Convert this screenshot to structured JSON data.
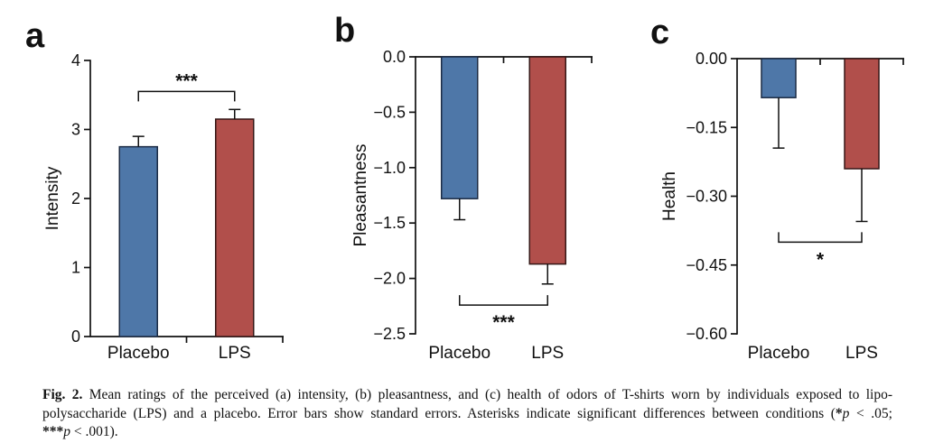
{
  "colors": {
    "axis": "#111111",
    "placebo_fill": "#4e77a8",
    "placebo_stroke": "#1c2b44",
    "lps_fill": "#b14f4b",
    "lps_stroke": "#351716"
  },
  "chart_data": [
    {
      "type": "bar",
      "panel_label": "a",
      "ylabel": "Intensity",
      "xlabel": "",
      "ylim": [
        0,
        4
      ],
      "yticks": [
        4,
        3,
        2,
        1,
        0
      ],
      "ytick_labels": [
        "4",
        "3",
        "2",
        "1",
        "0"
      ],
      "categories": [
        "Placebo",
        "LPS"
      ],
      "values": [
        2.75,
        3.15
      ],
      "errors": [
        0.15,
        0.14
      ],
      "grid": false,
      "legend": "none",
      "significance": {
        "label": "***",
        "at": 3.55,
        "side": "above"
      }
    },
    {
      "type": "bar",
      "panel_label": "b",
      "ylabel": "Pleasantness",
      "xlabel": "",
      "ylim": [
        -2.5,
        0
      ],
      "yticks": [
        0,
        -0.5,
        -1,
        -1.5,
        -2,
        -2.5
      ],
      "ytick_labels": [
        "0.0",
        "−0.5",
        "−1.0",
        "−1.5",
        "−2.0",
        "−2.5"
      ],
      "categories": [
        "Placebo",
        "LPS"
      ],
      "values": [
        -1.28,
        -1.87
      ],
      "errors": [
        0.19,
        0.18
      ],
      "grid": false,
      "legend": "none",
      "significance": {
        "label": "***",
        "at": -2.24,
        "side": "below"
      }
    },
    {
      "type": "bar",
      "panel_label": "c",
      "ylabel": "Health",
      "xlabel": "",
      "ylim": [
        -0.6,
        0
      ],
      "yticks": [
        0,
        -0.15,
        -0.3,
        -0.45,
        -0.6
      ],
      "ytick_labels": [
        "0.00",
        "−0.15",
        "−0.30",
        "−0.45",
        "−0.60"
      ],
      "categories": [
        "Placebo",
        "LPS"
      ],
      "values": [
        -0.085,
        -0.24
      ],
      "errors": [
        0.11,
        0.115
      ],
      "grid": false,
      "legend": "none",
      "significance": {
        "label": "*",
        "at": -0.4,
        "side": "below"
      }
    }
  ],
  "caption": {
    "lines": [
      {
        "segments": [
          {
            "t": "Fig. 2.",
            "style": "b"
          },
          {
            "t": " Mean ratings of the perceived (a) intensity, (b) pleasantness, and (c) health of odors of T-shirts worn by individuals exposed to lipo-"
          }
        ]
      },
      {
        "segments": [
          {
            "t": "polysaccharide (LPS) and a placebo. Error bars show standard errors. Asterisks indicate significant differences between conditions ("
          },
          {
            "t": "*",
            "style": "b"
          },
          {
            "t": "p",
            "style": "i"
          },
          {
            "t": " < .05;"
          }
        ]
      },
      {
        "segments": [
          {
            "t": "***",
            "style": "b"
          },
          {
            "t": "p",
            "style": "i"
          },
          {
            "t": " < .001)."
          }
        ]
      }
    ]
  }
}
